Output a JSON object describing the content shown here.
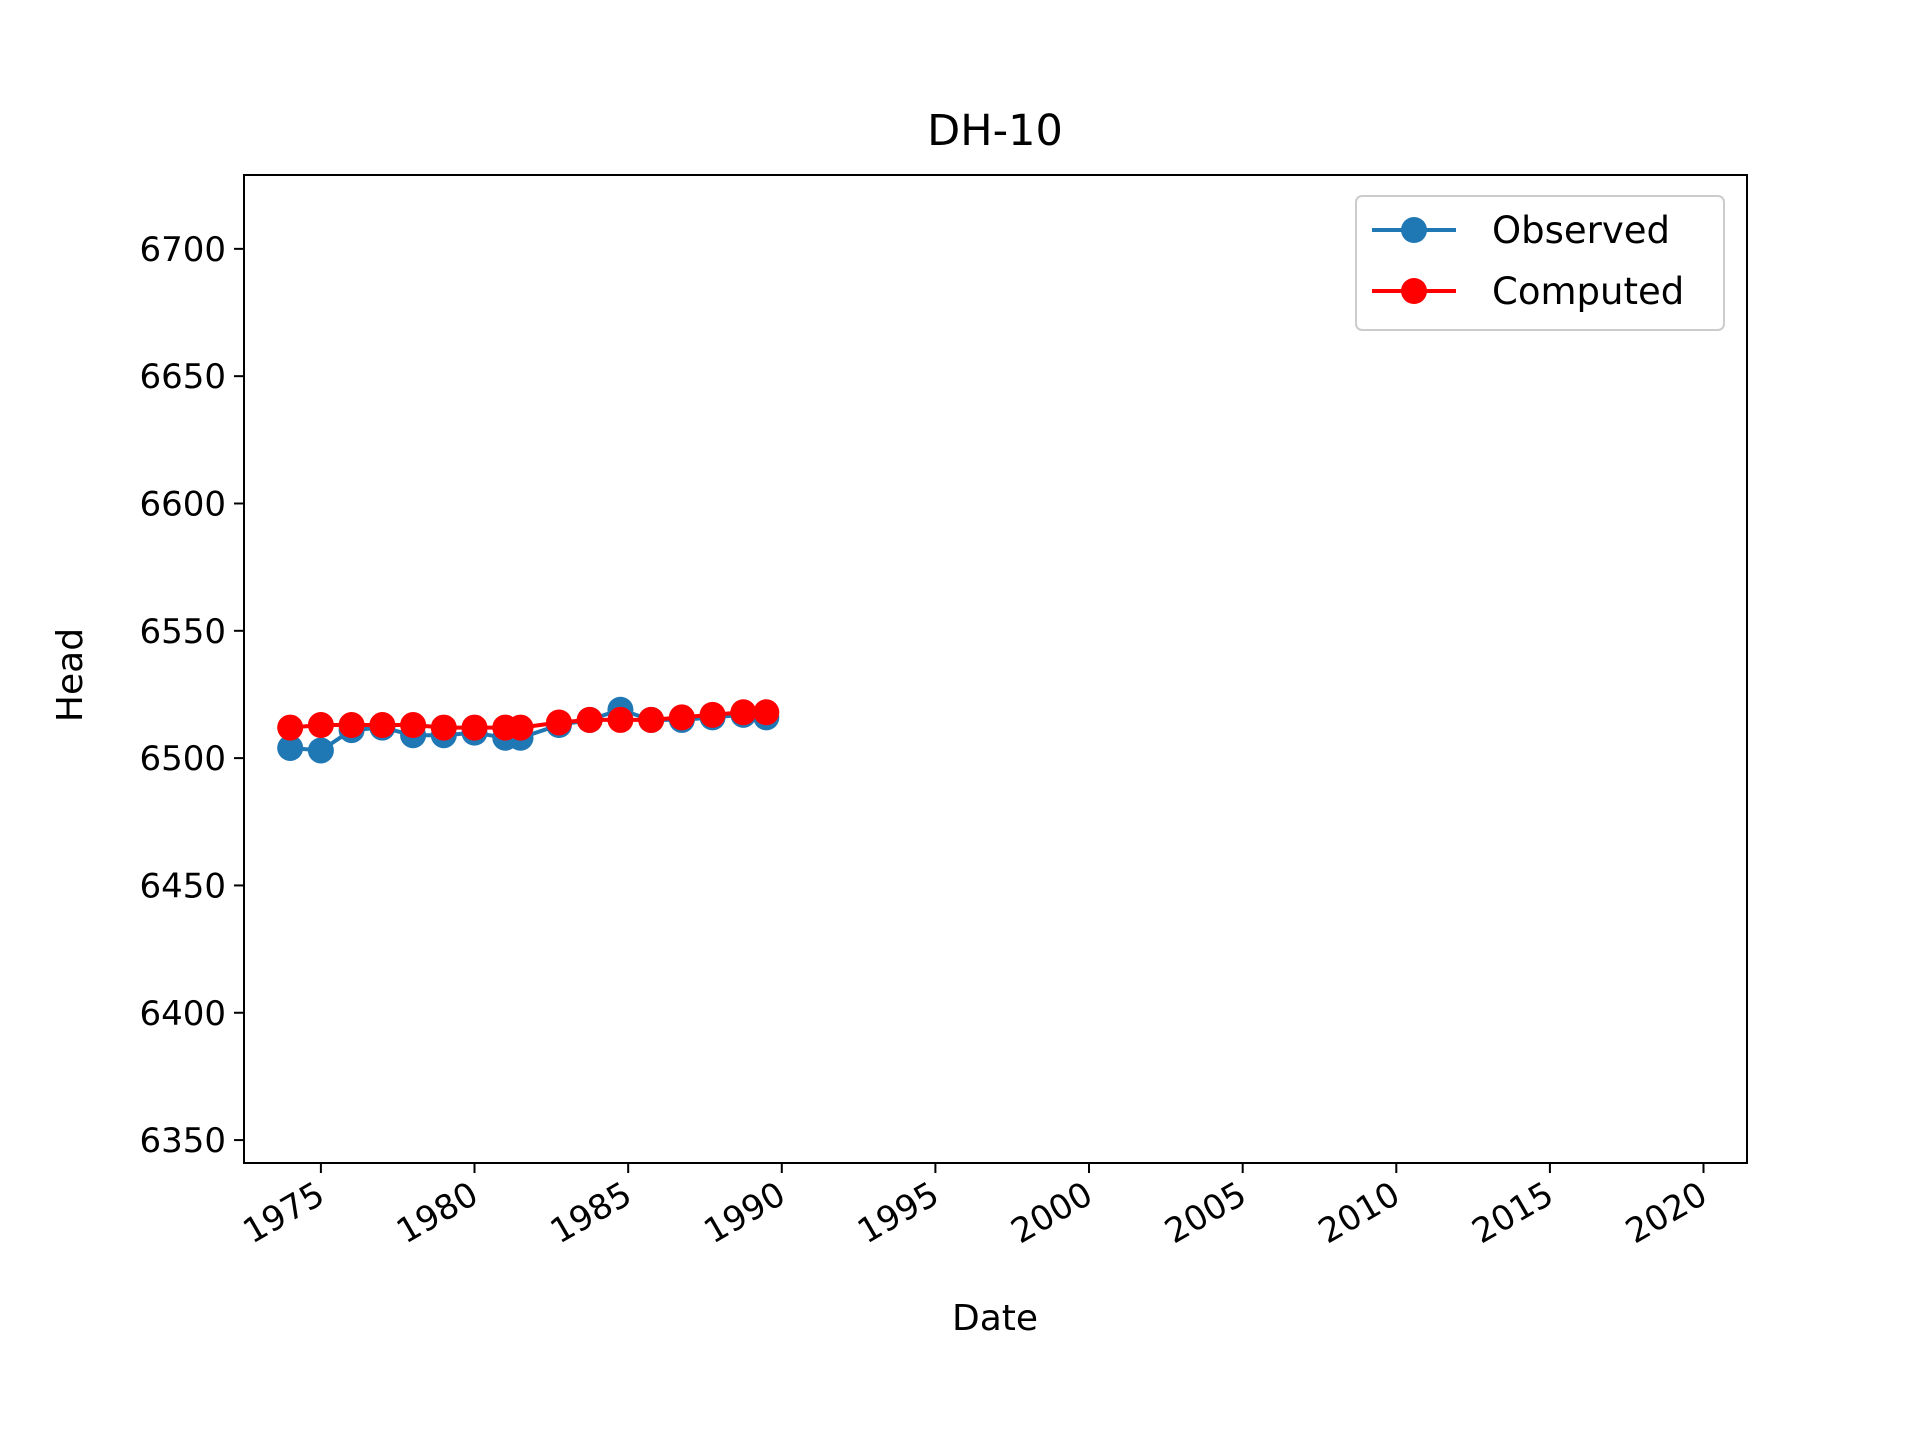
{
  "chart_data": {
    "type": "line",
    "title": "DH-10",
    "xlabel": "Date",
    "ylabel": "Head",
    "xlim": [
      "1972-07-01",
      "2021-06-01"
    ],
    "ylim": [
      6341,
      6729
    ],
    "x_ticks": [
      "1975",
      "1980",
      "1985",
      "1990",
      "1995",
      "2000",
      "2005",
      "2010",
      "2015",
      "2020"
    ],
    "y_ticks": [
      6350,
      6400,
      6450,
      6500,
      6550,
      6600,
      6650,
      6700
    ],
    "grid": false,
    "legend_position": "top-right",
    "series": [
      {
        "name": "Observed",
        "color": "#1f77b4",
        "marker": "circle",
        "points": [
          {
            "date": "1974-01-01",
            "value": 6504
          },
          {
            "date": "1975-01-01",
            "value": 6503
          },
          {
            "date": "1976-01-01",
            "value": 6511
          },
          {
            "date": "1977-01-01",
            "value": 6512
          },
          {
            "date": "1978-01-01",
            "value": 6509
          },
          {
            "date": "1979-01-01",
            "value": 6509
          },
          {
            "date": "1980-01-01",
            "value": 6510
          },
          {
            "date": "1981-01-01",
            "value": 6508
          },
          {
            "date": "1981-07-01",
            "value": 6508
          },
          {
            "date": "1982-10-01",
            "value": 6513
          },
          {
            "date": "1983-10-01",
            "value": 6515
          },
          {
            "date": "1984-10-01",
            "value": 6519
          },
          {
            "date": "1985-10-01",
            "value": 6515
          },
          {
            "date": "1986-10-01",
            "value": 6515
          },
          {
            "date": "1987-10-01",
            "value": 6516
          },
          {
            "date": "1988-10-01",
            "value": 6517
          },
          {
            "date": "1989-07-01",
            "value": 6516
          }
        ]
      },
      {
        "name": "Computed",
        "color": "#ff0000",
        "marker": "circle",
        "points": [
          {
            "date": "1974-01-01",
            "value": 6512
          },
          {
            "date": "1975-01-01",
            "value": 6513
          },
          {
            "date": "1976-01-01",
            "value": 6513
          },
          {
            "date": "1977-01-01",
            "value": 6513
          },
          {
            "date": "1978-01-01",
            "value": 6513
          },
          {
            "date": "1979-01-01",
            "value": 6512
          },
          {
            "date": "1980-01-01",
            "value": 6512
          },
          {
            "date": "1981-01-01",
            "value": 6512
          },
          {
            "date": "1981-07-01",
            "value": 6512
          },
          {
            "date": "1982-10-01",
            "value": 6514
          },
          {
            "date": "1983-10-01",
            "value": 6515
          },
          {
            "date": "1984-10-01",
            "value": 6515
          },
          {
            "date": "1985-10-01",
            "value": 6515
          },
          {
            "date": "1986-10-01",
            "value": 6516
          },
          {
            "date": "1987-10-01",
            "value": 6517
          },
          {
            "date": "1988-10-01",
            "value": 6518
          },
          {
            "date": "1989-07-01",
            "value": 6518
          }
        ]
      }
    ]
  }
}
